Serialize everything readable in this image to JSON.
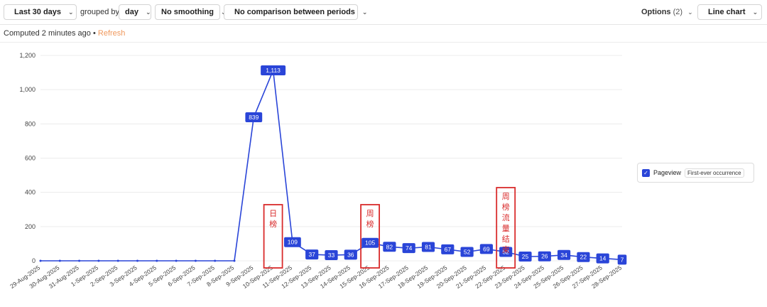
{
  "toolbar": {
    "date_range": "Last 30 days",
    "grouped_by_label": "grouped by",
    "interval": "day",
    "smoothing": "No smoothing",
    "comparison": "No comparison between periods",
    "options_label": "Options",
    "options_count": "(2)",
    "chart_type": "Line chart"
  },
  "status": {
    "computed": "Computed 2 minutes ago",
    "separator": "•",
    "refresh": "Refresh"
  },
  "legend": {
    "series_label": "Pageview",
    "tag": "First-ever occurrence"
  },
  "colors": {
    "series": "#2a45d8",
    "annotation": "#d92b2b",
    "grid": "#ececec"
  },
  "chart_data": {
    "type": "line",
    "title": "",
    "xlabel": "",
    "ylabel": "",
    "ylim": [
      0,
      1200
    ],
    "yticks": [
      0,
      200,
      400,
      600,
      800,
      1000,
      1200
    ],
    "ytick_labels": [
      "0",
      "200",
      "400",
      "600",
      "800",
      "1,000",
      "1,200"
    ],
    "categories": [
      "29-Aug-2025",
      "30-Aug-2025",
      "31-Aug-2025",
      "1-Sep-2025",
      "2-Sep-2025",
      "3-Sep-2025",
      "4-Sep-2025",
      "5-Sep-2025",
      "6-Sep-2025",
      "7-Sep-2025",
      "8-Sep-2025",
      "9-Sep-2025",
      "10-Sep-2025",
      "11-Sep-2025",
      "12-Sep-2025",
      "13-Sep-2025",
      "14-Sep-2025",
      "15-Sep-2025",
      "16-Sep-2025",
      "17-Sep-2025",
      "18-Sep-2025",
      "19-Sep-2025",
      "20-Sep-2025",
      "21-Sep-2025",
      "22-Sep-2025",
      "23-Sep-2025",
      "24-Sep-2025",
      "25-Sep-2025",
      "26-Sep-2025",
      "27-Sep-2025",
      "28-Sep-2025"
    ],
    "series": [
      {
        "name": "Pageview",
        "values": [
          0,
          0,
          0,
          0,
          0,
          0,
          0,
          0,
          0,
          0,
          0,
          839,
          1113,
          109,
          37,
          33,
          36,
          105,
          82,
          74,
          81,
          67,
          52,
          69,
          52,
          25,
          26,
          34,
          22,
          14,
          7
        ],
        "labels": [
          null,
          null,
          null,
          null,
          null,
          null,
          null,
          null,
          null,
          null,
          null,
          "839",
          "1,113",
          "109",
          "37",
          "33",
          "36",
          "105",
          "82",
          "74",
          "81",
          "67",
          "52",
          "69",
          "52",
          "25",
          "26",
          "34",
          "22",
          "14",
          "7"
        ]
      }
    ],
    "annotations": [
      {
        "text": "日榜",
        "category": "10-Sep-2025"
      },
      {
        "text": "周榜",
        "category": "15-Sep-2025"
      },
      {
        "text": "周榜流量结束",
        "category": "22-Sep-2025"
      }
    ]
  }
}
